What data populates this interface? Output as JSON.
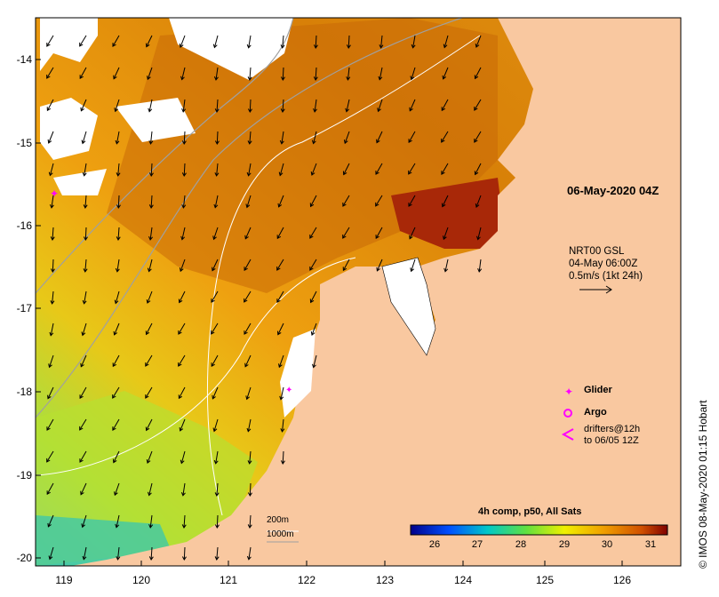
{
  "title_date": "06-May-2020 04Z",
  "current_info": {
    "line1": "NRT00 GSL",
    "line2": "04-May 06:00Z",
    "line3": "0.5m/s (1kt 24h)"
  },
  "latitude_ticks": [
    "-14",
    "-15",
    "-16",
    "-17",
    "-18",
    "-19",
    "-20"
  ],
  "longitude_ticks": [
    "119",
    "120",
    "121",
    "122",
    "123",
    "124",
    "125",
    "126"
  ],
  "legend": {
    "glider": "Glider",
    "argo": "Argo",
    "drifters_line1": "drifters@12h",
    "drifters_line2": "to 06/05 12Z"
  },
  "colorbar": {
    "title": "4h comp, p50, All Sats",
    "ticks": [
      "26",
      "27",
      "28",
      "29",
      "30",
      "31"
    ]
  },
  "scale_labels": {
    "line1": "200m",
    "line2": "1000m"
  },
  "credit": "© IMOS 08-May-2020 01:15 Hobart",
  "colors": {
    "land": "#f9c8a0",
    "warm_water": "#e8900c",
    "hot_water": "#b03a08",
    "cool_water": "#b8e030",
    "glider": "#ff00ff"
  }
}
